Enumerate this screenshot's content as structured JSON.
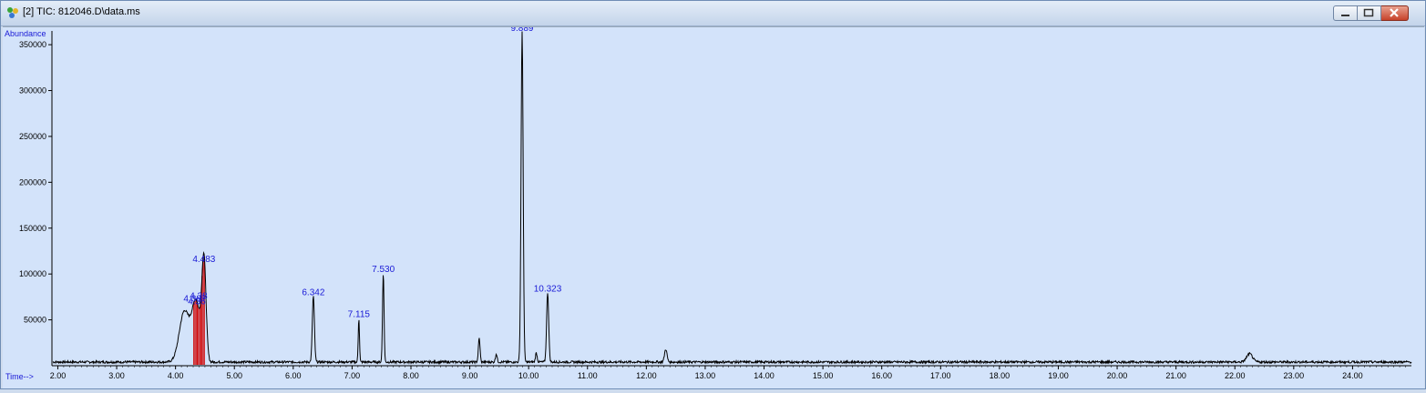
{
  "window": {
    "title": "[2] TIC: 812046.D\\data.ms",
    "controls": {
      "minimize": "minimize-icon",
      "maximize": "maximize-icon",
      "close": "close-icon"
    }
  },
  "chart_data": {
    "type": "line",
    "ylabel": "Abundance",
    "xlabel": "Time-->",
    "xlim": [
      1.9,
      25.0
    ],
    "ylim": [
      0,
      365000
    ],
    "x_ticks": [
      "2.00",
      "3.00",
      "4.00",
      "5.00",
      "6.00",
      "7.00",
      "8.00",
      "9.00",
      "10.00",
      "11.00",
      "12.00",
      "13.00",
      "14.00",
      "15.00",
      "16.00",
      "17.00",
      "18.00",
      "19.00",
      "20.00",
      "21.00",
      "22.00",
      "23.00",
      "24.00"
    ],
    "y_ticks": [
      "50000",
      "100000",
      "150000",
      "200000",
      "250000",
      "300000",
      "350000"
    ],
    "y_tick_values": [
      50000,
      100000,
      150000,
      200000,
      250000,
      300000,
      350000
    ],
    "x_tick_values": [
      2,
      3,
      4,
      5,
      6,
      7,
      8,
      9,
      10,
      11,
      12,
      13,
      14,
      15,
      16,
      17,
      18,
      19,
      20,
      21,
      22,
      23,
      24
    ],
    "baseline": 4000,
    "peaks": [
      {
        "rt": 4.15,
        "height": 55000,
        "width": 0.12,
        "label": ""
      },
      {
        "rt": 4.35,
        "height": 65000,
        "width": 0.1,
        "label": ""
      },
      {
        "rt": 4.483,
        "height": 108000,
        "width": 0.05,
        "label": "4.483"
      },
      {
        "rt": 6.342,
        "height": 72000,
        "width": 0.025,
        "label": "6.342"
      },
      {
        "rt": 7.115,
        "height": 48000,
        "width": 0.015,
        "label": "7.115"
      },
      {
        "rt": 7.53,
        "height": 97000,
        "width": 0.018,
        "label": "7.530"
      },
      {
        "rt": 9.16,
        "height": 26000,
        "width": 0.02,
        "label": ""
      },
      {
        "rt": 9.45,
        "height": 9000,
        "width": 0.02,
        "label": ""
      },
      {
        "rt": 9.889,
        "height": 360000,
        "width": 0.025,
        "label": "9.889"
      },
      {
        "rt": 10.13,
        "height": 10000,
        "width": 0.02,
        "label": ""
      },
      {
        "rt": 10.323,
        "height": 76000,
        "width": 0.025,
        "label": "10.323"
      },
      {
        "rt": 12.33,
        "height": 14000,
        "width": 0.03,
        "label": ""
      },
      {
        "rt": 22.25,
        "height": 9000,
        "width": 0.07,
        "label": ""
      }
    ],
    "cluster_labels": [
      "4.387",
      "4.36",
      "4.38"
    ],
    "integration_marks_rt": [
      4.31,
      4.33,
      4.35,
      4.37,
      4.39,
      4.41,
      4.43,
      4.45,
      4.47,
      4.49
    ],
    "colors": {
      "trace": "#000000",
      "labels": "#1a1ad6",
      "integration": "#d00000",
      "axis_text": "#000000",
      "abundance_label": "#1a1ad6"
    }
  }
}
